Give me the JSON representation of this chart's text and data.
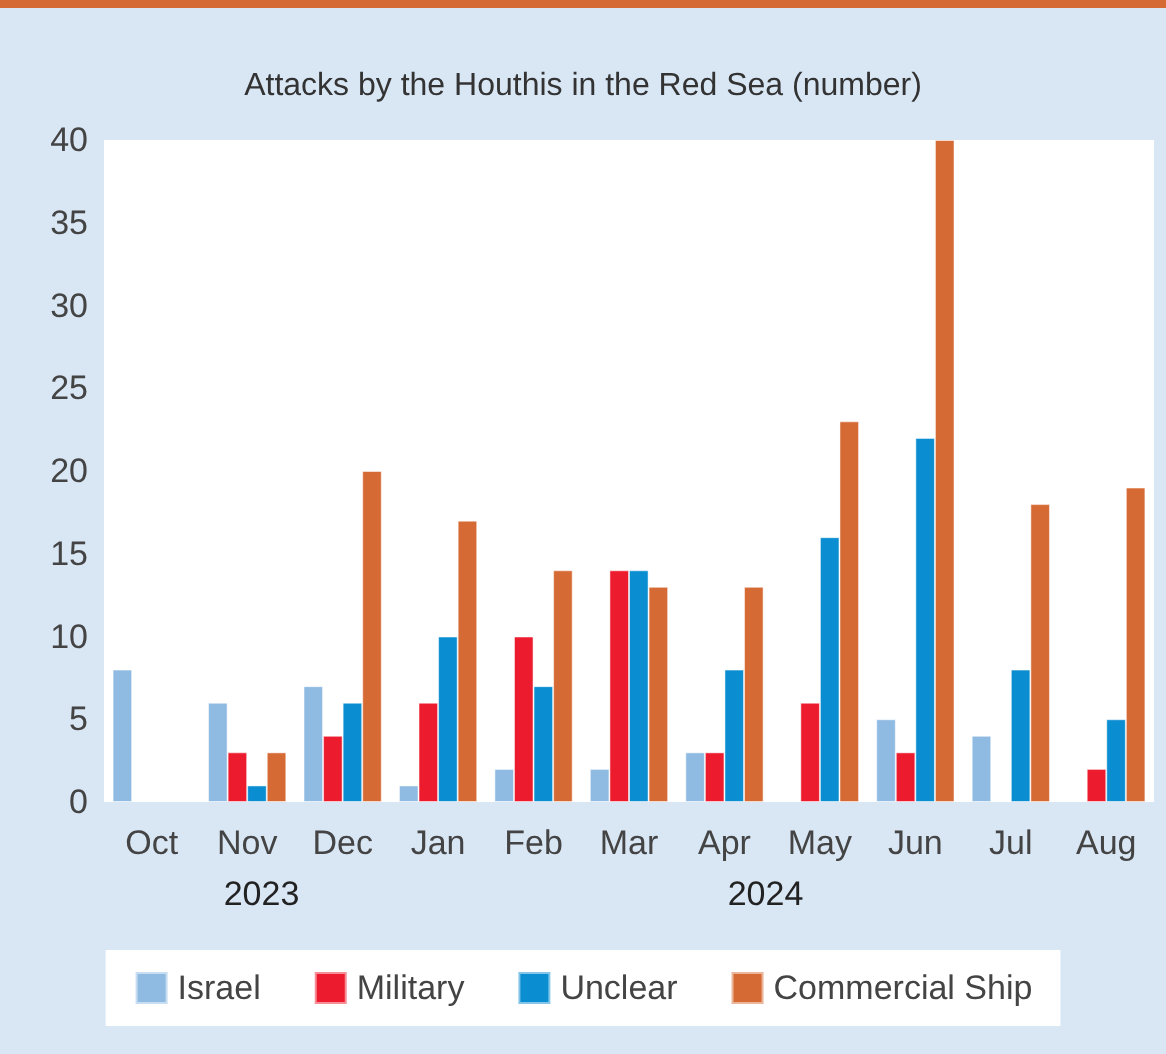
{
  "chart_data": {
    "type": "bar",
    "title": "Attacks by the Houthis in the Red Sea (number)",
    "categories": [
      "Oct",
      "Nov",
      "Dec",
      "Jan",
      "Feb",
      "Mar",
      "Apr",
      "May",
      "Jun",
      "Jul",
      "Aug"
    ],
    "series": [
      {
        "name": "Israel",
        "color": "#8fbbe3",
        "values": [
          8,
          6,
          7,
          1,
          2,
          2,
          3,
          null,
          5,
          4,
          null
        ]
      },
      {
        "name": "Military",
        "color": "#ec1c2e",
        "values": [
          null,
          3,
          4,
          6,
          10,
          14,
          3,
          6,
          3,
          null,
          2
        ]
      },
      {
        "name": "Unclear",
        "color": "#0a8dd1",
        "values": [
          null,
          1,
          6,
          10,
          7,
          14,
          8,
          16,
          22,
          8,
          5
        ]
      },
      {
        "name": "Commercial Ship",
        "color": "#d66a35",
        "values": [
          null,
          3,
          20,
          17,
          14,
          13,
          13,
          23,
          40,
          18,
          19
        ]
      }
    ],
    "ylim": [
      0,
      40
    ],
    "yticks": [
      0,
      5,
      10,
      15,
      20,
      25,
      30,
      35,
      40
    ],
    "grid": false,
    "legend": "bottom",
    "annotations": [
      "2023",
      "2024"
    ]
  }
}
